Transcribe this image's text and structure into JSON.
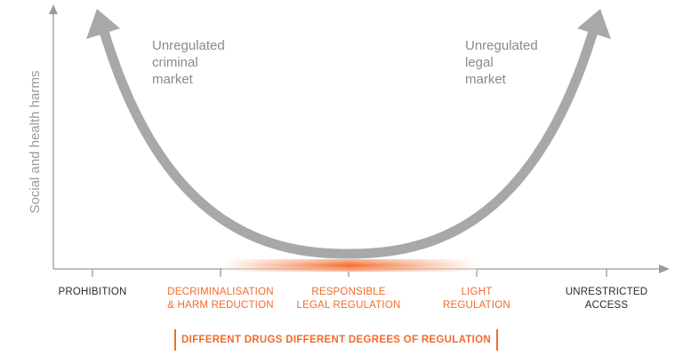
{
  "y_axis": {
    "label": "Social and health harms"
  },
  "curve_labels": {
    "left": [
      "Unregulated",
      "criminal",
      "market"
    ],
    "right": [
      "Unregulated",
      "legal",
      "market"
    ]
  },
  "categories": [
    {
      "lines": [
        "PROHIBITION"
      ],
      "tone": "dark"
    },
    {
      "lines": [
        "DECRIMINALISATION",
        "& HARM REDUCTION"
      ],
      "tone": "orange"
    },
    {
      "lines": [
        "RESPONSIBLE",
        "LEGAL REGULATION"
      ],
      "tone": "orange"
    },
    {
      "lines": [
        "LIGHT",
        "REGULATION"
      ],
      "tone": "orange"
    },
    {
      "lines": [
        "UNRESTRICTED",
        "ACCESS"
      ],
      "tone": "dark"
    }
  ],
  "subtitle": "DIFFERENT DRUGS DIFFERENT DEGREES OF REGULATION",
  "colors": {
    "accent": "#f26b2a",
    "curve": "#a8a8a8",
    "axis": "#9a9a9a"
  }
}
